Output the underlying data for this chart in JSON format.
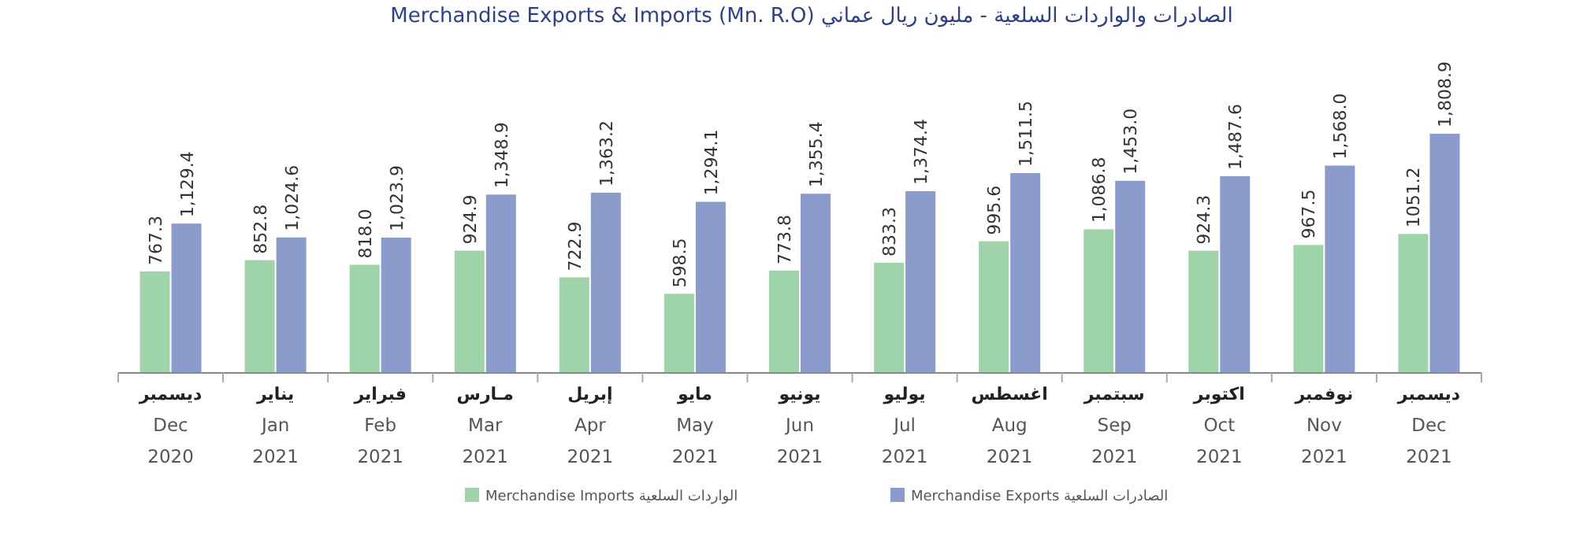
{
  "chart_data": {
    "type": "bar",
    "title": "Merchandise Exports & Imports (Mn. R.O)  الصادرات والواردات السلعية - مليون ريال عماني",
    "categories": [
      "ديسمبر\nDec\n2020",
      "يناير\nJan\n2021",
      "فبراير\nFeb\n2021",
      "مـارس\nMar\n2021",
      "إبريل\nApr\n2021",
      "مايو\nMay\n2021",
      "يونيو\nJun\n2021",
      "يوليو\nJul\n2021",
      "اغسطس\nAug\n2021",
      "سبتمبر\nSep\n2021",
      "اكتوبر\nOct\n2021",
      "نوفمبر\nNov\n2021",
      "ديسمبر\nDec\n2021"
    ],
    "series": [
      {
        "name": "Merchandise Imports الواردات السلعية",
        "color": "#9fd3a9",
        "values": [
          767.3,
          852.8,
          818.0,
          924.9,
          722.9,
          598.5,
          773.8,
          833.3,
          995.6,
          1086.8,
          924.3,
          967.5,
          1051.2
        ],
        "value_labels": [
          "767.3",
          "852.8",
          "818.0",
          "924.9",
          "722.9",
          "598.5",
          "773.8",
          "833.3",
          "995.6",
          "1,086.8",
          "924.3",
          "967.5",
          "1051.2"
        ]
      },
      {
        "name": "Merchandise Exports الصادرات السلعية",
        "color": "#8b9ccc",
        "values": [
          1129.4,
          1024.6,
          1023.9,
          1348.9,
          1363.2,
          1294.1,
          1355.4,
          1374.4,
          1511.5,
          1453.0,
          1487.6,
          1568.0,
          1808.9
        ],
        "value_labels": [
          "1,129.4",
          "1,024.6",
          "1,023.9",
          "1,348.9",
          "1,363.2",
          "1,294.1",
          "1,355.4",
          "1,374.4",
          "1,511.5",
          "1,453.0",
          "1,487.6",
          "1,568.0",
          "1,808.9"
        ]
      }
    ],
    "legend": "bottom"
  }
}
